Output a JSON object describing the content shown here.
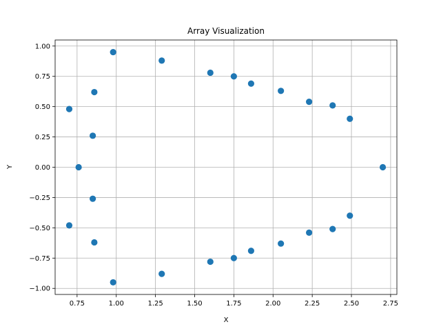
{
  "chart_data": {
    "type": "scatter",
    "title": "Array Visualization",
    "xlabel": "X",
    "ylabel": "Y",
    "xlim": [
      0.61,
      2.79
    ],
    "ylim": [
      -1.05,
      1.05
    ],
    "xticks": [
      0.75,
      1.0,
      1.25,
      1.5,
      1.75,
      2.0,
      2.25,
      2.5,
      2.75
    ],
    "xtick_labels": [
      "0.75",
      "1.00",
      "1.25",
      "1.50",
      "1.75",
      "2.00",
      "2.25",
      "2.50",
      "2.75"
    ],
    "yticks": [
      -1.0,
      -0.75,
      -0.5,
      -0.25,
      0.0,
      0.25,
      0.5,
      0.75,
      1.0
    ],
    "ytick_labels": [
      "−1.00",
      "−0.75",
      "−0.50",
      "−0.25",
      "0.00",
      "0.25",
      "0.50",
      "0.75",
      "1.00"
    ],
    "grid": true,
    "marker_color": "#1f77b4",
    "x": [
      2.7,
      2.49,
      2.38,
      2.23,
      2.05,
      1.86,
      1.75,
      1.6,
      1.29,
      0.98,
      0.86,
      0.7,
      0.85,
      0.76,
      0.85,
      0.7,
      0.86,
      0.98,
      1.29,
      1.6,
      1.75,
      1.86,
      2.05,
      2.23,
      2.38,
      2.49
    ],
    "y": [
      0.0,
      0.4,
      0.51,
      0.54,
      0.63,
      0.69,
      0.75,
      0.78,
      0.88,
      0.95,
      0.62,
      0.48,
      0.26,
      0.0,
      -0.26,
      -0.48,
      -0.62,
      -0.95,
      -0.88,
      -0.78,
      -0.75,
      -0.69,
      -0.63,
      -0.54,
      -0.51,
      -0.4
    ]
  }
}
